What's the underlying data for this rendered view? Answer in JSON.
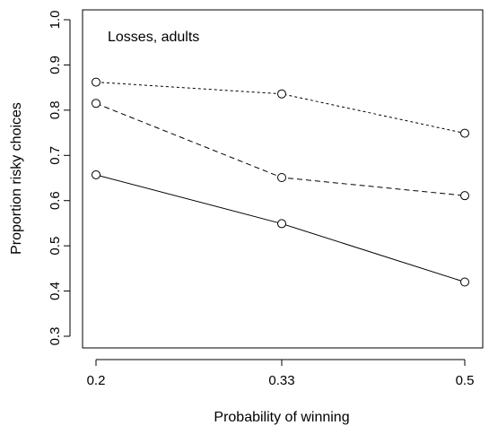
{
  "chart_data": {
    "type": "line",
    "title": "",
    "annotation": "Losses, adults",
    "xlabel": "Probability of winning",
    "ylabel": "Proportion risky choices",
    "categories": [
      "0.2",
      "0.33",
      "0.5"
    ],
    "ylim": [
      0.3,
      1.0
    ],
    "yticks": [
      "0.3",
      "0.4",
      "0.5",
      "0.6",
      "0.7",
      "0.8",
      "0.9",
      "1.0"
    ],
    "grid": false,
    "legend": "none",
    "series": [
      {
        "line_style": "dotted",
        "values": [
          0.862,
          0.836,
          0.749
        ]
      },
      {
        "line_style": "dashed",
        "values": [
          0.815,
          0.651,
          0.611
        ]
      },
      {
        "line_style": "solid",
        "values": [
          0.657,
          0.549,
          0.42
        ]
      }
    ],
    "colors": {
      "line": "#000000",
      "marker_fill": "#ffffff"
    }
  }
}
